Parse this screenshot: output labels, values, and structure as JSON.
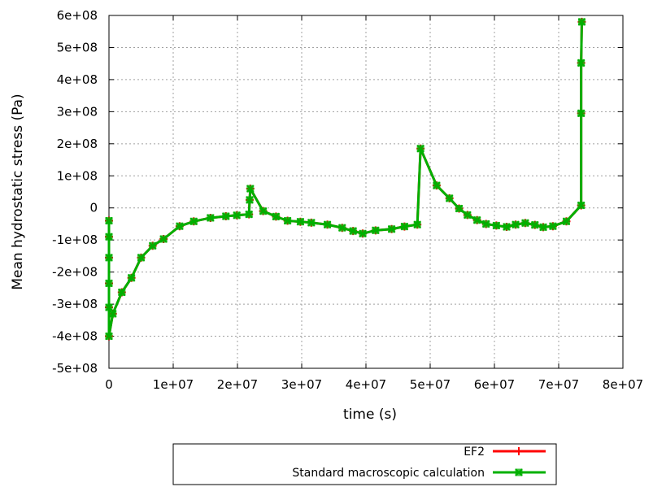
{
  "chart_data": {
    "type": "line",
    "xlabel": "time (s)",
    "ylabel": "Mean hydrostatic stress (Pa)",
    "xlim": [
      0,
      80000000
    ],
    "ylim": [
      -500000000,
      600000000
    ],
    "x_ticks": [
      0,
      10000000,
      20000000,
      30000000,
      40000000,
      50000000,
      60000000,
      70000000,
      80000000
    ],
    "x_tick_labels": [
      "0",
      "1e+07",
      "2e+07",
      "3e+07",
      "4e+07",
      "5e+07",
      "6e+07",
      "7e+07",
      "8e+07"
    ],
    "y_ticks": [
      600000000,
      500000000,
      400000000,
      300000000,
      200000000,
      100000000,
      0,
      -100000000,
      -200000000,
      -300000000,
      -400000000,
      -500000000
    ],
    "y_tick_labels": [
      "6e+08",
      "5e+08",
      "4e+08",
      "3e+08",
      "2e+08",
      "1e+08",
      "0",
      "-1e+08",
      "-2e+08",
      "-3e+08",
      "-4e+08",
      "-5e+08"
    ],
    "grid": true,
    "legend_position": "bottom-center",
    "series": [
      {
        "name": "EF2",
        "color": "#ff0000",
        "marker": "plus",
        "points": [
          [
            0,
            -40000000
          ],
          [
            0,
            -90000000
          ],
          [
            0,
            -155000000
          ],
          [
            0,
            -235000000
          ],
          [
            0,
            -310000000
          ],
          [
            0,
            -400000000
          ],
          [
            600000,
            -330000000
          ],
          [
            2000000,
            -263000000
          ],
          [
            3500000,
            -218000000
          ],
          [
            5000000,
            -155000000
          ],
          [
            6800000,
            -118000000
          ],
          [
            8500000,
            -97000000
          ],
          [
            11000000,
            -57000000
          ],
          [
            13200000,
            -42000000
          ],
          [
            15800000,
            -31000000
          ],
          [
            18200000,
            -26000000
          ],
          [
            19900000,
            -23000000
          ],
          [
            21800000,
            -20000000
          ],
          [
            21900000,
            25000000
          ],
          [
            22000000,
            60000000
          ],
          [
            24000000,
            -10000000
          ],
          [
            26000000,
            -27000000
          ],
          [
            27800000,
            -40000000
          ],
          [
            29800000,
            -43000000
          ],
          [
            31500000,
            -46000000
          ],
          [
            34000000,
            -52000000
          ],
          [
            36300000,
            -62000000
          ],
          [
            38000000,
            -72000000
          ],
          [
            39500000,
            -80000000
          ],
          [
            41500000,
            -70000000
          ],
          [
            44000000,
            -66000000
          ],
          [
            46000000,
            -58000000
          ],
          [
            48000000,
            -52000000
          ],
          [
            48500000,
            185000000
          ],
          [
            51000000,
            70000000
          ],
          [
            53000000,
            30000000
          ],
          [
            54500000,
            -2000000
          ],
          [
            55800000,
            -22000000
          ],
          [
            57300000,
            -38000000
          ],
          [
            58700000,
            -50000000
          ],
          [
            60300000,
            -55000000
          ],
          [
            61900000,
            -59000000
          ],
          [
            63300000,
            -52000000
          ],
          [
            64800000,
            -47000000
          ],
          [
            66300000,
            -53000000
          ],
          [
            67600000,
            -60000000
          ],
          [
            69100000,
            -57000000
          ],
          [
            71200000,
            -42000000
          ],
          [
            73500000,
            8000000
          ],
          [
            73500000,
            295000000
          ],
          [
            73500000,
            452000000
          ],
          [
            73600000,
            580000000
          ]
        ]
      },
      {
        "name": "Standard macroscopic calculation",
        "color": "#00b000",
        "marker": "x",
        "points": [
          [
            0,
            -40000000
          ],
          [
            0,
            -90000000
          ],
          [
            0,
            -155000000
          ],
          [
            0,
            -235000000
          ],
          [
            0,
            -310000000
          ],
          [
            0,
            -400000000
          ],
          [
            600000,
            -330000000
          ],
          [
            2000000,
            -263000000
          ],
          [
            3500000,
            -218000000
          ],
          [
            5000000,
            -155000000
          ],
          [
            6800000,
            -118000000
          ],
          [
            8500000,
            -97000000
          ],
          [
            11000000,
            -57000000
          ],
          [
            13200000,
            -42000000
          ],
          [
            15800000,
            -31000000
          ],
          [
            18200000,
            -26000000
          ],
          [
            19900000,
            -23000000
          ],
          [
            21800000,
            -20000000
          ],
          [
            21900000,
            25000000
          ],
          [
            22000000,
            60000000
          ],
          [
            24000000,
            -10000000
          ],
          [
            26000000,
            -27000000
          ],
          [
            27800000,
            -40000000
          ],
          [
            29800000,
            -43000000
          ],
          [
            31500000,
            -46000000
          ],
          [
            34000000,
            -52000000
          ],
          [
            36300000,
            -62000000
          ],
          [
            38000000,
            -72000000
          ],
          [
            39500000,
            -80000000
          ],
          [
            41500000,
            -70000000
          ],
          [
            44000000,
            -66000000
          ],
          [
            46000000,
            -58000000
          ],
          [
            48000000,
            -52000000
          ],
          [
            48500000,
            185000000
          ],
          [
            51000000,
            70000000
          ],
          [
            53000000,
            30000000
          ],
          [
            54500000,
            -2000000
          ],
          [
            55800000,
            -22000000
          ],
          [
            57300000,
            -38000000
          ],
          [
            58700000,
            -50000000
          ],
          [
            60300000,
            -55000000
          ],
          [
            61900000,
            -59000000
          ],
          [
            63300000,
            -52000000
          ],
          [
            64800000,
            -47000000
          ],
          [
            66300000,
            -53000000
          ],
          [
            67600000,
            -60000000
          ],
          [
            69100000,
            -57000000
          ],
          [
            71200000,
            -42000000
          ],
          [
            73500000,
            8000000
          ],
          [
            73500000,
            295000000
          ],
          [
            73500000,
            452000000
          ],
          [
            73600000,
            580000000
          ]
        ]
      }
    ]
  }
}
